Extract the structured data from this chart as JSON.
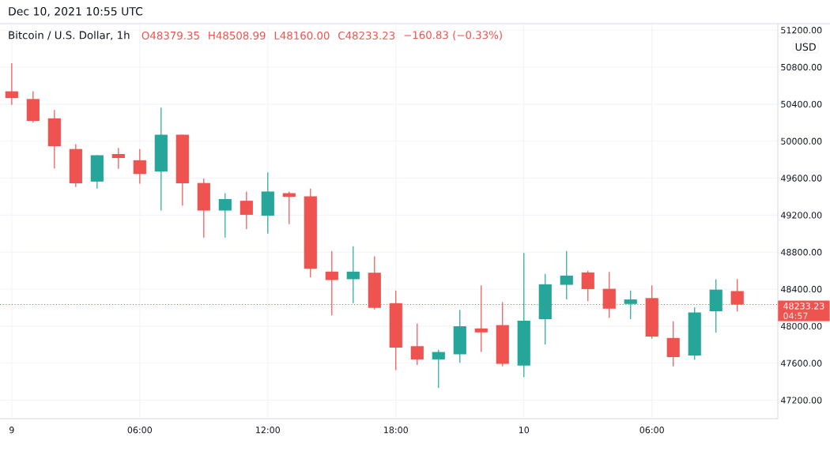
{
  "chart_data": {
    "type": "candlestick",
    "title": "Bitcoin / U.S. Dollar, 1h",
    "subtitle": "Dec 10, 2021 10:55 UTC",
    "x": [
      "2021-12-09T00:00",
      "2021-12-09T01:00",
      "2021-12-09T02:00",
      "2021-12-09T03:00",
      "2021-12-09T04:00",
      "2021-12-09T05:00",
      "2021-12-09T06:00",
      "2021-12-09T07:00",
      "2021-12-09T08:00",
      "2021-12-09T09:00",
      "2021-12-09T10:00",
      "2021-12-09T11:00",
      "2021-12-09T12:00",
      "2021-12-09T13:00",
      "2021-12-09T14:00",
      "2021-12-09T15:00",
      "2021-12-09T16:00",
      "2021-12-09T17:00",
      "2021-12-09T18:00",
      "2021-12-09T19:00",
      "2021-12-09T20:00",
      "2021-12-09T21:00",
      "2021-12-09T22:00",
      "2021-12-09T23:00",
      "2021-12-10T00:00",
      "2021-12-10T01:00",
      "2021-12-10T02:00",
      "2021-12-10T03:00",
      "2021-12-10T04:00",
      "2021-12-10T05:00",
      "2021-12-10T06:00",
      "2021-12-10T07:00",
      "2021-12-10T08:00",
      "2021-12-10T09:00",
      "2021-12-10T10:00"
    ],
    "ohlc": [
      [
        50539,
        50843,
        50393,
        50466
      ],
      [
        50456,
        50539,
        50201,
        50219
      ],
      [
        50247,
        50338,
        49706,
        49946
      ],
      [
        49915,
        49967,
        49505,
        49545
      ],
      [
        49563,
        49848,
        49487,
        49848
      ],
      [
        49861,
        49928,
        49700,
        49818
      ],
      [
        49794,
        49915,
        49541,
        49645
      ],
      [
        49672,
        50362,
        49250,
        50070
      ],
      [
        50070,
        50070,
        49304,
        49545
      ],
      [
        49548,
        49596,
        48958,
        49250
      ],
      [
        49250,
        49438,
        48958,
        49374
      ],
      [
        49356,
        49456,
        49049,
        49204
      ],
      [
        49195,
        49663,
        49000,
        49456
      ],
      [
        49438,
        49456,
        49104,
        49399
      ],
      [
        49405,
        49487,
        48526,
        48620
      ],
      [
        48590,
        48812,
        48116,
        48499
      ],
      [
        48508,
        48864,
        48249,
        48590
      ],
      [
        48578,
        48754,
        48180,
        48198
      ],
      [
        48249,
        48386,
        47526,
        47769
      ],
      [
        47784,
        48028,
        47581,
        47641
      ],
      [
        47641,
        47745,
        47334,
        47721
      ],
      [
        47696,
        48177,
        47605,
        47999
      ],
      [
        47976,
        48441,
        47721,
        47933
      ],
      [
        48012,
        48259,
        47565,
        47593
      ],
      [
        47575,
        48791,
        47450,
        48058
      ],
      [
        48076,
        48564,
        47802,
        48453
      ],
      [
        48447,
        48812,
        48289,
        48547
      ],
      [
        48581,
        48599,
        48271,
        48401
      ],
      [
        48404,
        48587,
        48088,
        48189
      ],
      [
        48240,
        48386,
        48076,
        48289
      ],
      [
        48304,
        48441,
        47864,
        47888
      ],
      [
        47873,
        48052,
        47565,
        47666
      ],
      [
        47684,
        48204,
        47638,
        48149
      ],
      [
        48161,
        48508,
        47930,
        48395
      ],
      [
        48379.35,
        48508.99,
        48160.0,
        48233.23
      ]
    ],
    "colors": [
      "#ef5350",
      "#ef5350",
      "#ef5350",
      "#ef5350",
      "#26a69a",
      "#ef5350",
      "#ef5350",
      "#26a69a",
      "#ef5350",
      "#ef5350",
      "#26a69a",
      "#ef5350",
      "#26a69a",
      "#ef5350",
      "#ef5350",
      "#ef5350",
      "#26a69a",
      "#ef5350",
      "#ef5350",
      "#ef5350",
      "#26a69a",
      "#26a69a",
      "#ef5350",
      "#ef5350",
      "#26a69a",
      "#26a69a",
      "#26a69a",
      "#ef5350",
      "#ef5350",
      "#26a69a",
      "#ef5350",
      "#ef5350",
      "#26a69a",
      "#26a69a",
      "#ef5350"
    ],
    "xlim": [
      "2021-12-08T23:27",
      "2021-12-10T11:54"
    ],
    "ylim": [
      47000,
      51270
    ],
    "xticks": [
      {
        "value": "2021-12-09T00:00",
        "label": "9"
      },
      {
        "value": "2021-12-09T06:00",
        "label": "06:00"
      },
      {
        "value": "2021-12-09T12:00",
        "label": "12:00"
      },
      {
        "value": "2021-12-09T18:00",
        "label": "18:00"
      },
      {
        "value": "2021-12-10T00:00",
        "label": "10"
      },
      {
        "value": "2021-12-10T06:00",
        "label": "06:00"
      }
    ],
    "yticks": [
      {
        "value": 47200,
        "label": "47200.00"
      },
      {
        "value": 47600,
        "label": "47600.00"
      },
      {
        "value": 48000,
        "label": "48000.00"
      },
      {
        "value": 48400,
        "label": "48400.00"
      },
      {
        "value": 48800,
        "label": "48800.00"
      },
      {
        "value": 49200,
        "label": "49200.00"
      },
      {
        "value": 49600,
        "label": "49600.00"
      },
      {
        "value": 50000,
        "label": "50000.00"
      },
      {
        "value": 50400,
        "label": "50400.00"
      },
      {
        "value": 50800,
        "label": "50800.00"
      },
      {
        "value": 51200,
        "label": "51200.00"
      }
    ],
    "grid": true,
    "ref_lines": [
      {
        "axis": "y",
        "value": 48233.23,
        "label": "48233.23",
        "color": "#ef5350",
        "line_style": "dotted"
      }
    ],
    "annotations": [
      "O48379.35",
      "H48508.99",
      "L48160.00",
      "C48233.23",
      "−160.83 (−0.33%)",
      "04:57",
      "USD"
    ]
  }
}
